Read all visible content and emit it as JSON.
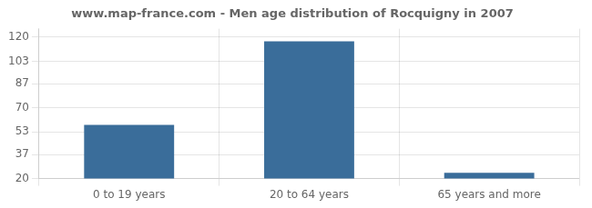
{
  "chart_data": {
    "type": "bar",
    "title": "www.map-france.com - Men age distribution of Rocquigny in 2007",
    "categories": [
      "0 to 19 years",
      "20 to 64 years",
      "65 years and more"
    ],
    "values": [
      58,
      117,
      24
    ],
    "color": "#3a6d9a",
    "ylim": [
      20,
      126
    ],
    "yticks": [
      20,
      37,
      53,
      70,
      87,
      103,
      120
    ],
    "grid": true
  }
}
